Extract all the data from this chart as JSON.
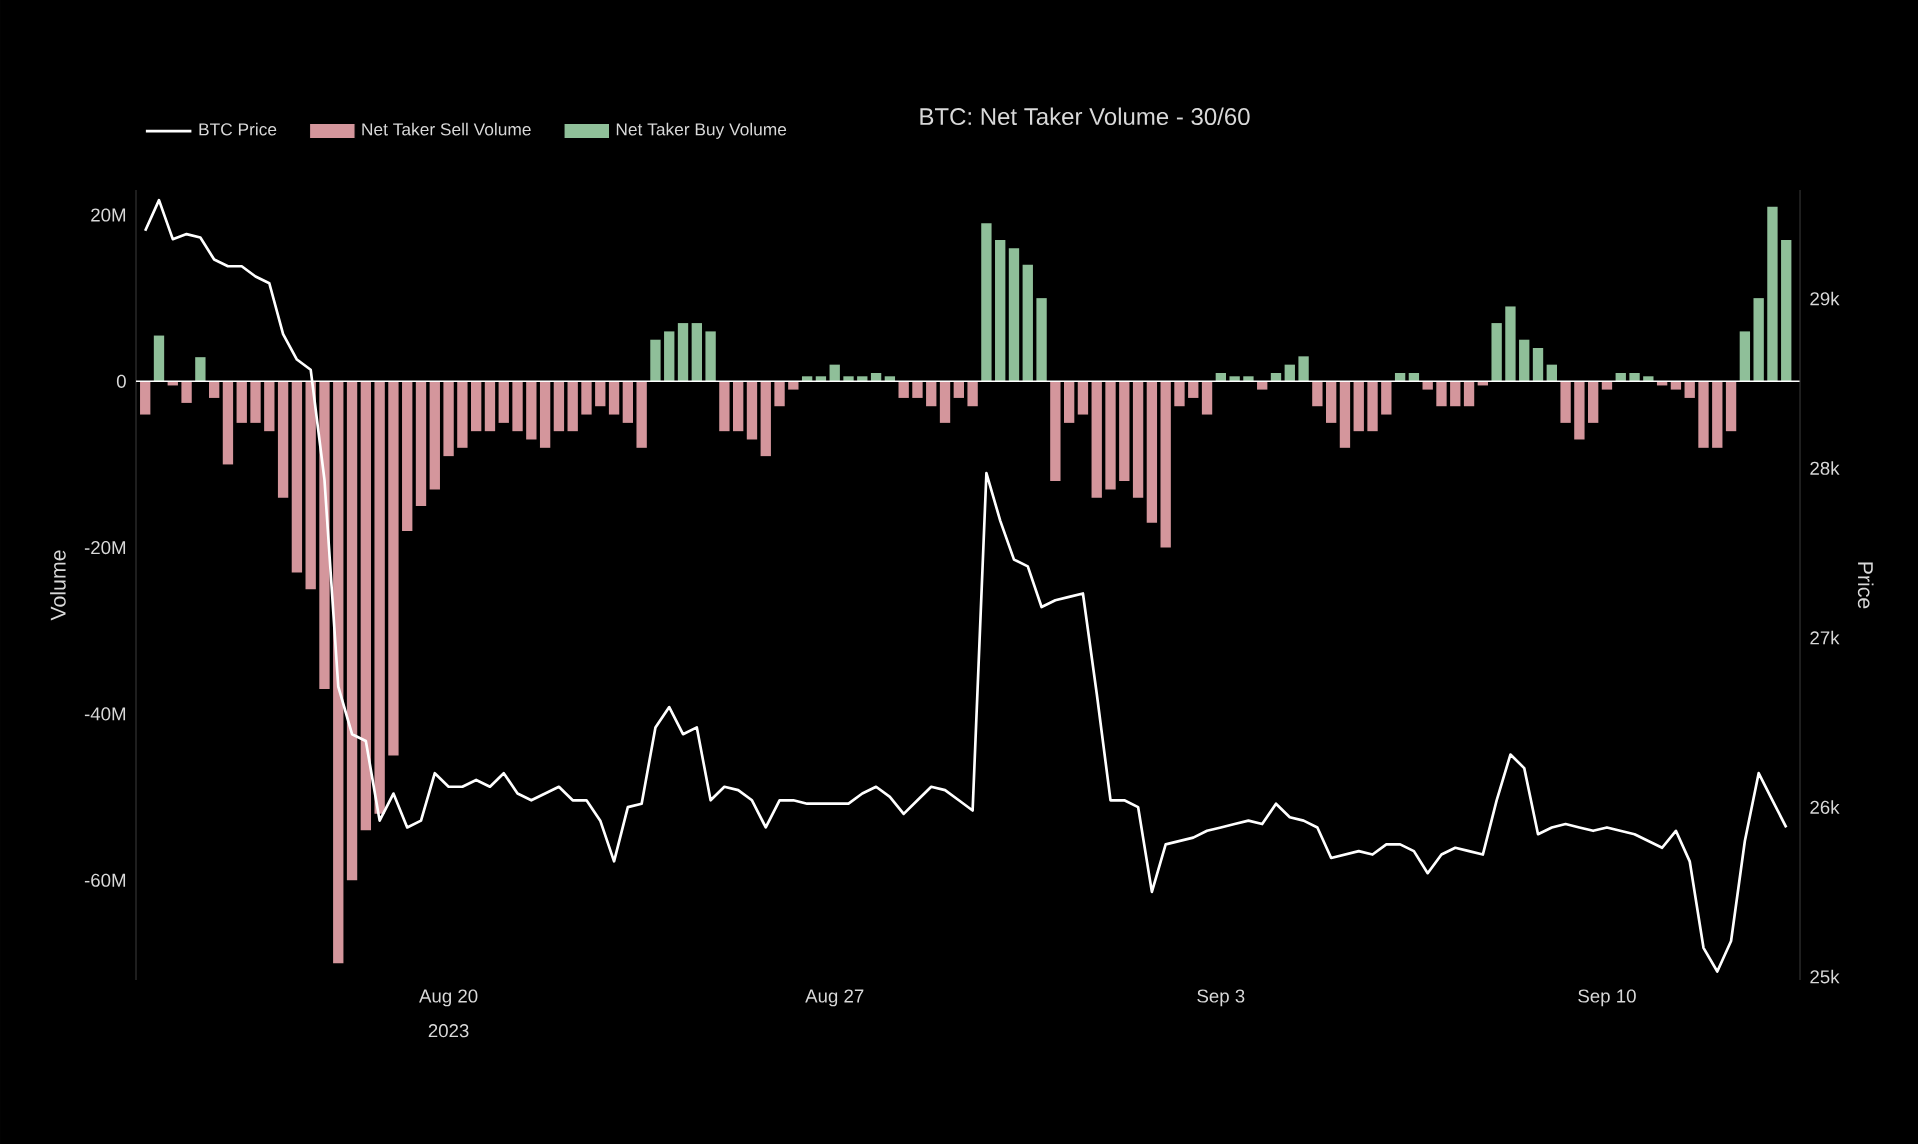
{
  "chart_data": {
    "type": "bar",
    "title": "BTC: Net Taker Volume - 30/60",
    "ylabel": "Volume",
    "y2label": "Price",
    "legend": "top left",
    "annotations": [
      "2023"
    ],
    "xlim": [
      "2023-08-14T08:00",
      "2023-09-13T12:00"
    ],
    "xticks": [
      {
        "value": "2023-08-20",
        "label": "Aug 20"
      },
      {
        "value": "2023-08-27",
        "label": "Aug 27"
      },
      {
        "value": "2023-09-03",
        "label": "Sep 3"
      },
      {
        "value": "2023-09-10",
        "label": "Sep 10"
      }
    ],
    "ylim": [
      -72,
      23
    ],
    "yticks": [
      {
        "value": -60,
        "label": "-60M"
      },
      {
        "value": -40,
        "label": "-40M"
      },
      {
        "value": -20,
        "label": "-20M"
      },
      0,
      {
        "value": 20,
        "label": "20M"
      }
    ],
    "y2lim": [
      24.98,
      29.64
    ],
    "y2ticks": [
      {
        "value": 25,
        "label": "25k"
      },
      {
        "value": 26,
        "label": "26k"
      },
      {
        "value": 27,
        "label": "27k"
      },
      {
        "value": 28,
        "label": "28k"
      },
      {
        "value": 29,
        "label": "29k"
      }
    ],
    "ref_lines": [
      {
        "axis": "y",
        "value": 0,
        "color": "#ffffff"
      }
    ],
    "x": [
      "2023-08-14T12:00",
      "2023-08-14T18:00",
      "2023-08-15T00:00",
      "2023-08-15T06:00",
      "2023-08-15T12:00",
      "2023-08-15T18:00",
      "2023-08-16T00:00",
      "2023-08-16T06:00",
      "2023-08-16T12:00",
      "2023-08-16T18:00",
      "2023-08-17T00:00",
      "2023-08-17T06:00",
      "2023-08-17T12:00",
      "2023-08-17T18:00",
      "2023-08-18T00:00",
      "2023-08-18T06:00",
      "2023-08-18T12:00",
      "2023-08-18T18:00",
      "2023-08-19T00:00",
      "2023-08-19T06:00",
      "2023-08-19T12:00",
      "2023-08-19T18:00",
      "2023-08-20T00:00",
      "2023-08-20T06:00",
      "2023-08-20T12:00",
      "2023-08-20T18:00",
      "2023-08-21T00:00",
      "2023-08-21T06:00",
      "2023-08-21T12:00",
      "2023-08-21T18:00",
      "2023-08-22T00:00",
      "2023-08-22T06:00",
      "2023-08-22T12:00",
      "2023-08-22T18:00",
      "2023-08-23T00:00",
      "2023-08-23T06:00",
      "2023-08-23T12:00",
      "2023-08-23T18:00",
      "2023-08-24T00:00",
      "2023-08-24T06:00",
      "2023-08-24T12:00",
      "2023-08-24T18:00",
      "2023-08-25T00:00",
      "2023-08-25T06:00",
      "2023-08-25T12:00",
      "2023-08-25T18:00",
      "2023-08-26T00:00",
      "2023-08-26T06:00",
      "2023-08-26T12:00",
      "2023-08-26T18:00",
      "2023-08-27T00:00",
      "2023-08-27T06:00",
      "2023-08-27T12:00",
      "2023-08-27T18:00",
      "2023-08-28T00:00",
      "2023-08-28T06:00",
      "2023-08-28T12:00",
      "2023-08-28T18:00",
      "2023-08-29T00:00",
      "2023-08-29T06:00",
      "2023-08-29T12:00",
      "2023-08-29T18:00",
      "2023-08-30T00:00",
      "2023-08-30T06:00",
      "2023-08-30T12:00",
      "2023-08-30T18:00",
      "2023-08-31T00:00",
      "2023-08-31T06:00",
      "2023-08-31T12:00",
      "2023-08-31T18:00",
      "2023-09-01T00:00",
      "2023-09-01T06:00",
      "2023-09-01T12:00",
      "2023-09-01T18:00",
      "2023-09-02T00:00",
      "2023-09-02T06:00",
      "2023-09-02T12:00",
      "2023-09-02T18:00",
      "2023-09-03T00:00",
      "2023-09-03T06:00",
      "2023-09-03T12:00",
      "2023-09-03T18:00",
      "2023-09-04T00:00",
      "2023-09-04T06:00",
      "2023-09-04T12:00",
      "2023-09-04T18:00",
      "2023-09-05T00:00",
      "2023-09-05T06:00",
      "2023-09-05T12:00",
      "2023-09-05T18:00",
      "2023-09-06T00:00",
      "2023-09-06T06:00",
      "2023-09-06T12:00",
      "2023-09-06T18:00",
      "2023-09-07T00:00",
      "2023-09-07T06:00",
      "2023-09-07T12:00",
      "2023-09-07T18:00",
      "2023-09-08T00:00",
      "2023-09-08T06:00",
      "2023-09-08T12:00",
      "2023-09-08T18:00",
      "2023-09-09T00:00",
      "2023-09-09T06:00",
      "2023-09-09T12:00",
      "2023-09-09T18:00",
      "2023-09-10T00:00",
      "2023-09-10T06:00",
      "2023-09-10T12:00",
      "2023-09-10T18:00",
      "2023-09-11T00:00",
      "2023-09-11T06:00",
      "2023-09-11T12:00",
      "2023-09-11T18:00",
      "2023-09-12T00:00",
      "2023-09-12T06:00",
      "2023-09-12T12:00",
      "2023-09-12T18:00",
      "2023-09-13T00:00",
      "2023-09-13T06:00"
    ],
    "series": [
      {
        "name": "BTC Price",
        "type": "line",
        "axis": "y2",
        "color": "#ffffff",
        "values": [
          29.4,
          29.58,
          29.35,
          29.38,
          29.36,
          29.23,
          29.19,
          29.19,
          29.13,
          29.09,
          28.79,
          28.64,
          28.58,
          27.93,
          26.71,
          26.43,
          26.39,
          25.92,
          26.08,
          25.88,
          25.92,
          26.2,
          26.12,
          26.12,
          26.16,
          26.12,
          26.2,
          26.08,
          26.04,
          26.08,
          26.12,
          26.04,
          26.04,
          25.92,
          25.68,
          26.0,
          26.02,
          26.47,
          26.59,
          26.43,
          26.47,
          26.04,
          26.12,
          26.1,
          26.04,
          25.88,
          26.04,
          26.04,
          26.02,
          26.02,
          26.02,
          26.02,
          26.08,
          26.12,
          26.06,
          25.96,
          26.04,
          26.12,
          26.1,
          26.04,
          25.98,
          27.97,
          27.69,
          27.46,
          27.42,
          27.18,
          27.22,
          27.24,
          27.26,
          26.67,
          26.04,
          26.04,
          26.0,
          25.5,
          25.78,
          25.8,
          25.82,
          25.86,
          25.88,
          25.9,
          25.92,
          25.9,
          26.02,
          25.94,
          25.92,
          25.88,
          25.7,
          25.72,
          25.74,
          25.72,
          25.78,
          25.78,
          25.74,
          25.61,
          25.72,
          25.76,
          25.74,
          25.72,
          26.04,
          26.31,
          26.23,
          25.84,
          25.88,
          25.9,
          25.88,
          25.86,
          25.88,
          25.86,
          25.84,
          25.8,
          25.76,
          25.86,
          25.68,
          25.17,
          25.03,
          25.21,
          25.8,
          26.2,
          26.04,
          25.88
        ]
      },
      {
        "name": "Net Taker Sell Volume",
        "color": "#d4969c",
        "values": [
          -4,
          null,
          -0.5,
          -2.6,
          null,
          -2,
          -10,
          -5,
          -5,
          -6,
          -14,
          -23,
          -25,
          -37,
          -70,
          -60,
          -54,
          -52,
          -45,
          -18,
          -15,
          -13,
          -9,
          -8,
          -6,
          -6,
          -5,
          -6,
          -7,
          -8,
          -6,
          -6,
          -4,
          -3,
          -4,
          -5,
          -8,
          null,
          null,
          null,
          null,
          null,
          -6,
          -6,
          -7,
          -9,
          -3,
          -1,
          null,
          null,
          null,
          null,
          null,
          null,
          null,
          -2,
          -2,
          -3,
          -5,
          -2,
          -3,
          null,
          null,
          null,
          null,
          null,
          -12,
          -5,
          -4,
          -14,
          -13,
          -12,
          -14,
          -17,
          -20,
          -3,
          -2,
          -4,
          null,
          null,
          null,
          -1,
          null,
          null,
          null,
          -3,
          -5,
          -8,
          -6,
          -6,
          -4,
          null,
          null,
          -1,
          -3,
          -3,
          -3,
          -0.5,
          null,
          null,
          null,
          null,
          null,
          -5,
          -7,
          -5,
          -1,
          null,
          null,
          null,
          -0.5,
          -1,
          -2,
          -8,
          -8,
          -6,
          null,
          null,
          null,
          null
        ]
      },
      {
        "name": "Net Taker Buy Volume",
        "color": "#8fbf99",
        "values": [
          null,
          5.5,
          null,
          null,
          2.9,
          null,
          null,
          null,
          null,
          null,
          null,
          null,
          null,
          null,
          null,
          null,
          null,
          null,
          null,
          null,
          null,
          null,
          null,
          null,
          null,
          null,
          null,
          null,
          null,
          null,
          null,
          null,
          null,
          null,
          null,
          null,
          null,
          5,
          6,
          7,
          7,
          6,
          null,
          null,
          null,
          null,
          null,
          null,
          0.6,
          0.6,
          2,
          0.6,
          0.6,
          1,
          0.6,
          null,
          null,
          null,
          null,
          null,
          null,
          19,
          17,
          16,
          14,
          10,
          null,
          null,
          null,
          null,
          null,
          null,
          null,
          null,
          null,
          null,
          null,
          null,
          1,
          0.6,
          0.6,
          null,
          1,
          2,
          3,
          null,
          null,
          null,
          null,
          null,
          null,
          1,
          1,
          null,
          null,
          null,
          null,
          null,
          7,
          9,
          5,
          4,
          2,
          null,
          null,
          null,
          null,
          1,
          1,
          0.6,
          null,
          null,
          null,
          null,
          null,
          null,
          6,
          10,
          21,
          17
        ]
      }
    ]
  }
}
